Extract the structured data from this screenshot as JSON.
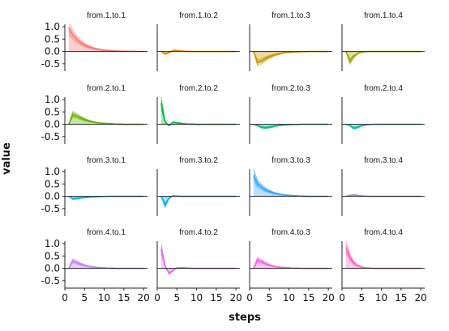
{
  "chart_data": {
    "type": "line",
    "title": "",
    "xlabel": "steps",
    "ylabel": "value",
    "xlim": [
      0,
      21
    ],
    "ylim": [
      -0.8,
      1.1
    ],
    "x_ticks": [
      0,
      5,
      10,
      15,
      20
    ],
    "y_ticks": [
      1.0,
      0.5,
      0.0,
      -0.5
    ],
    "y_tick_labels": [
      "1.0",
      "0.5",
      "0.0",
      "-0.5"
    ],
    "x_tick_labels": [
      "0",
      "5",
      "10",
      "15",
      "20"
    ],
    "grid": false,
    "steps": [
      1,
      2,
      3,
      4,
      5,
      6,
      7,
      8,
      9,
      10,
      11,
      12,
      13,
      14,
      15,
      16,
      17,
      18,
      19,
      20
    ],
    "panels": [
      {
        "name": "from.1.to.1",
        "color": "#F8766D",
        "values": [
          0.95,
          0.68,
          0.5,
          0.36,
          0.26,
          0.19,
          0.14,
          0.1,
          0.07,
          0.05,
          0.04,
          0.03,
          0.02,
          0.015,
          0.01,
          0.008,
          0.005,
          0.004,
          0.003,
          0.002
        ]
      },
      {
        "name": "from.1.to.2",
        "color": "#E08B00",
        "values": [
          0.0,
          -0.1,
          -0.05,
          0.04,
          0.04,
          0.02,
          0.01,
          0.0,
          0.0,
          0.0,
          0.0,
          0.0,
          0.0,
          0.0,
          0.0,
          0.0,
          0.0,
          0.0,
          0.0,
          0.0
        ]
      },
      {
        "name": "from.1.to.3",
        "color": "#C99800",
        "values": [
          0.0,
          -0.45,
          -0.4,
          -0.3,
          -0.22,
          -0.16,
          -0.11,
          -0.08,
          -0.05,
          -0.04,
          -0.03,
          -0.02,
          -0.01,
          -0.01,
          0.0,
          0.0,
          0.0,
          0.0,
          0.0,
          0.0
        ]
      },
      {
        "name": "from.1.to.4",
        "color": "#A3A500",
        "values": [
          0.0,
          -0.4,
          -0.2,
          -0.08,
          -0.03,
          -0.01,
          0.0,
          0.0,
          0.0,
          0.0,
          0.0,
          0.0,
          0.0,
          0.0,
          0.0,
          0.0,
          0.0,
          0.0,
          0.0,
          0.0
        ]
      },
      {
        "name": "from.2.to.1",
        "color": "#6BB100",
        "values": [
          0.0,
          0.4,
          0.34,
          0.26,
          0.19,
          0.14,
          0.1,
          0.07,
          0.05,
          0.04,
          0.03,
          0.02,
          0.01,
          0.01,
          0.0,
          0.0,
          0.0,
          0.0,
          0.0,
          0.0
        ]
      },
      {
        "name": "from.2.to.2",
        "color": "#00BA38",
        "values": [
          0.85,
          0.1,
          -0.05,
          0.08,
          0.06,
          0.04,
          0.02,
          0.01,
          0.01,
          0.0,
          0.0,
          0.0,
          0.0,
          0.0,
          0.0,
          0.0,
          0.0,
          0.0,
          0.0,
          0.0
        ]
      },
      {
        "name": "from.2.to.3",
        "color": "#00BF7D",
        "values": [
          0.0,
          -0.05,
          -0.12,
          -0.14,
          -0.12,
          -0.09,
          -0.06,
          -0.04,
          -0.03,
          -0.02,
          -0.01,
          -0.01,
          0.0,
          0.0,
          0.0,
          0.0,
          0.0,
          0.0,
          0.0,
          0.0
        ]
      },
      {
        "name": "from.2.to.4",
        "color": "#00C0AF",
        "values": [
          0.0,
          -0.05,
          -0.16,
          -0.12,
          -0.06,
          -0.03,
          -0.01,
          0.0,
          0.0,
          0.0,
          0.0,
          0.0,
          0.0,
          0.0,
          0.0,
          0.0,
          0.0,
          0.0,
          0.0,
          0.0
        ]
      },
      {
        "name": "from.3.to.1",
        "color": "#00BCD8",
        "values": [
          0.0,
          -0.1,
          -0.09,
          -0.07,
          -0.05,
          -0.04,
          -0.03,
          -0.02,
          -0.01,
          -0.01,
          0.0,
          0.0,
          0.0,
          0.0,
          0.0,
          0.0,
          0.0,
          0.0,
          0.0,
          0.0
        ]
      },
      {
        "name": "from.3.to.2",
        "color": "#00B0F6",
        "values": [
          0.0,
          -0.35,
          -0.08,
          0.02,
          0.01,
          0.0,
          0.0,
          0.0,
          0.0,
          0.0,
          0.0,
          0.0,
          0.0,
          0.0,
          0.0,
          0.0,
          0.0,
          0.0,
          0.0,
          0.0
        ]
      },
      {
        "name": "from.3.to.3",
        "color": "#35A2FF",
        "values": [
          0.85,
          0.52,
          0.38,
          0.27,
          0.2,
          0.14,
          0.1,
          0.07,
          0.05,
          0.04,
          0.03,
          0.02,
          0.01,
          0.01,
          0.0,
          0.0,
          0.0,
          0.0,
          0.0,
          0.0
        ]
      },
      {
        "name": "from.3.to.4",
        "color": "#9590FF",
        "values": [
          0.0,
          0.04,
          0.06,
          0.04,
          0.02,
          0.01,
          0.0,
          0.0,
          0.0,
          0.0,
          0.0,
          0.0,
          0.0,
          0.0,
          0.0,
          0.0,
          0.0,
          0.0,
          0.0,
          0.0
        ]
      },
      {
        "name": "from.4.to.1",
        "color": "#C77CFF",
        "values": [
          0.0,
          0.3,
          0.24,
          0.17,
          0.12,
          0.08,
          0.06,
          0.04,
          0.03,
          0.02,
          0.01,
          0.01,
          0.0,
          0.0,
          0.0,
          0.0,
          0.0,
          0.0,
          0.0,
          0.0
        ]
      },
      {
        "name": "from.4.to.2",
        "color": "#E76BF3",
        "values": [
          0.8,
          0.1,
          -0.2,
          -0.1,
          0.02,
          0.03,
          0.02,
          0.01,
          0.0,
          0.0,
          0.0,
          0.0,
          0.0,
          0.0,
          0.0,
          0.0,
          0.0,
          0.0,
          0.0,
          0.0
        ]
      },
      {
        "name": "from.4.to.3",
        "color": "#FA62DB",
        "values": [
          0.0,
          0.35,
          0.28,
          0.19,
          0.13,
          0.09,
          0.06,
          0.04,
          0.03,
          0.02,
          0.01,
          0.01,
          0.0,
          0.0,
          0.0,
          0.0,
          0.0,
          0.0,
          0.0,
          0.0
        ]
      },
      {
        "name": "from.4.to.4",
        "color": "#FF62BC",
        "values": [
          0.85,
          0.45,
          0.22,
          0.1,
          0.05,
          0.02,
          0.01,
          0.0,
          0.0,
          0.0,
          0.0,
          0.0,
          0.0,
          0.0,
          0.0,
          0.0,
          0.0,
          0.0,
          0.0,
          0.0
        ]
      }
    ]
  }
}
